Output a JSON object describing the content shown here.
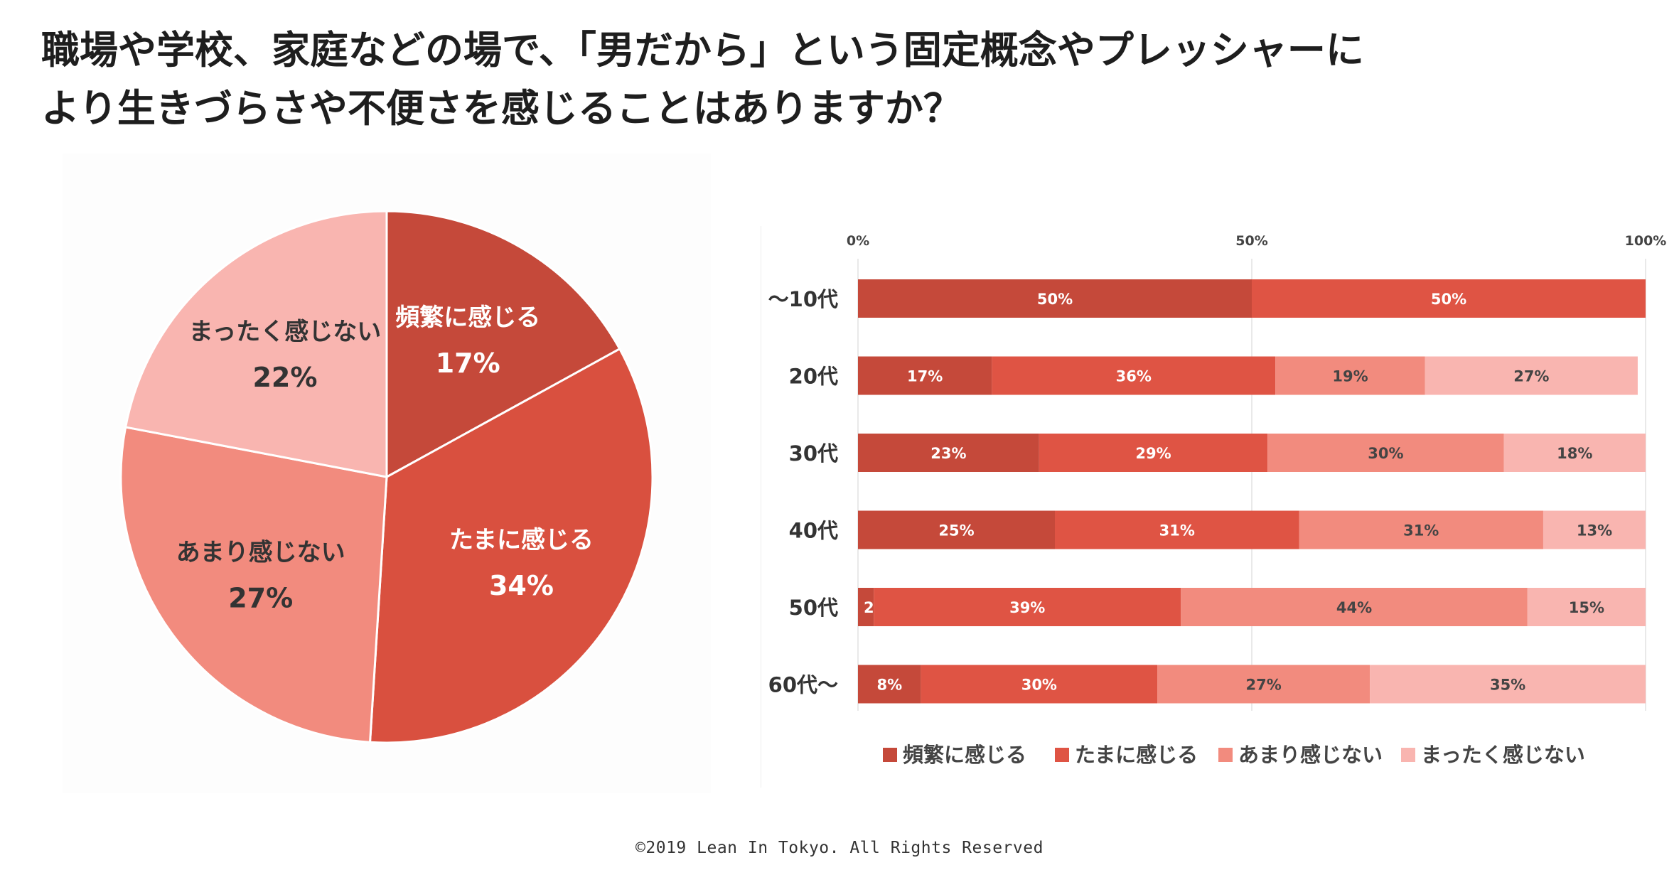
{
  "title": {
    "line1": "職場や学校、家庭などの場で、「男だから」という固定概念やプレッシャーに",
    "line2": "より生きづらさや不便さを感じることはありますか？"
  },
  "chart_data": [
    {
      "type": "pie",
      "title": "",
      "slices": [
        {
          "label": "頻繁に感じる",
          "value": 17,
          "display": "17%",
          "color": "#c5493a"
        },
        {
          "label": "たまに感じる",
          "value": 34,
          "display": "34%",
          "color": "#d9503f"
        },
        {
          "label": "あまり感じない",
          "value": 27,
          "display": "27%",
          "color": "#f28b7e"
        },
        {
          "label": "まったく感じない",
          "value": 22,
          "display": "22%",
          "color": "#f9b5b0"
        }
      ]
    },
    {
      "type": "bar",
      "orientation": "horizontal",
      "stacked": true,
      "title": "",
      "xlim": [
        0,
        100
      ],
      "ticks": [
        "0%",
        "50%",
        "100%"
      ],
      "tick_values": [
        0,
        50,
        100
      ],
      "grid": true,
      "legend_position": "bottom",
      "categories": [
        "〜10代",
        "20代",
        "30代",
        "40代",
        "50代",
        "60代〜"
      ],
      "series": [
        {
          "name": "頻繁に感じる",
          "color": "#c5493a",
          "values": [
            50,
            17,
            23,
            25,
            2,
            8
          ]
        },
        {
          "name": "たまに感じる",
          "color": "#df5444",
          "values": [
            50,
            36,
            29,
            31,
            39,
            30
          ]
        },
        {
          "name": "あまり感じない",
          "color": "#f28b7e",
          "values": [
            0,
            19,
            30,
            31,
            44,
            27
          ]
        },
        {
          "name": "まったく感じない",
          "color": "#f9b5b0",
          "values": [
            0,
            27,
            18,
            13,
            15,
            35
          ]
        }
      ]
    }
  ],
  "footer": "©2019 Lean In Tokyo. All Rights Reserved"
}
